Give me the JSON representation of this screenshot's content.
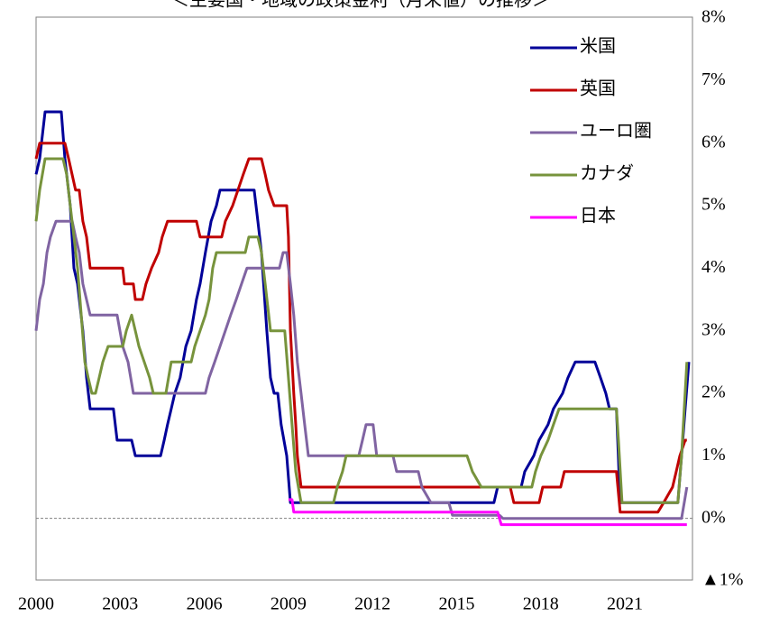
{
  "chart_data": {
    "type": "line",
    "title": "＜主要国・地域の政策金利（月末値）の推移＞",
    "xlim": [
      2000,
      2023.41
    ],
    "xticks": [
      2000,
      2003,
      2006,
      2009,
      2012,
      2015,
      2018,
      2021
    ],
    "ylim": [
      -1,
      8
    ],
    "yticks": [
      {
        "value": -1,
        "label": "▲1%"
      },
      {
        "value": 0,
        "label": "0%"
      },
      {
        "value": 1,
        "label": "1%"
      },
      {
        "value": 2,
        "label": "2%"
      },
      {
        "value": 3,
        "label": "3%"
      },
      {
        "value": 4,
        "label": "4%"
      },
      {
        "value": 5,
        "label": "5%"
      },
      {
        "value": 6,
        "label": "6%"
      },
      {
        "value": 7,
        "label": "7%"
      },
      {
        "value": 8,
        "label": "8%"
      }
    ],
    "y_axis_side": "right",
    "negative_tick_color": "#ff0000",
    "zero_line": true,
    "legend": "upper right",
    "series": [
      {
        "name": "米国",
        "color": "#000099",
        "x": [
          2000,
          2000.13,
          2000.32,
          2000.9,
          2001.03,
          2001.22,
          2001.35,
          2001.48,
          2001.67,
          2001.8,
          2001.93,
          2002.76,
          2002.89,
          2003.41,
          2003.54,
          2004.44,
          2004.57,
          2004.69,
          2004.82,
          2004.95,
          2005.14,
          2005.34,
          2005.53,
          2005.72,
          2005.85,
          2006.04,
          2006.24,
          2006.43,
          2006.56,
          2007.78,
          2007.91,
          2008.04,
          2008.23,
          2008.36,
          2008.49,
          2008.62,
          2008.74,
          2008.94,
          2009.07,
          2016.33,
          2016.46,
          2017.3,
          2017.43,
          2017.75,
          2017.94,
          2018.26,
          2018.45,
          2018.78,
          2018.97,
          2019.23,
          2019.93,
          2020.13,
          2020.32,
          2020.45,
          2020.7,
          2020.83,
          2022.89,
          2023.02,
          2023.15,
          2023.28
        ],
        "values": [
          5.5,
          5.75,
          6.5,
          6.5,
          5.75,
          5.0,
          4.0,
          3.75,
          3.0,
          2.25,
          1.75,
          1.75,
          1.25,
          1.25,
          1.0,
          1.0,
          1.25,
          1.5,
          1.75,
          2.0,
          2.25,
          2.75,
          3.0,
          3.5,
          3.75,
          4.25,
          4.75,
          5.0,
          5.25,
          5.25,
          4.75,
          4.25,
          3.0,
          2.25,
          2.0,
          2.0,
          1.5,
          1.0,
          0.25,
          0.25,
          0.5,
          0.5,
          0.75,
          1.0,
          1.25,
          1.5,
          1.75,
          2.0,
          2.25,
          2.5,
          2.5,
          2.25,
          2.0,
          1.75,
          1.75,
          0.25,
          0.25,
          1.0,
          1.75,
          2.5
        ]
      },
      {
        "name": "英国",
        "color": "#c00000",
        "x": [
          2000,
          2000.13,
          2001.03,
          2001.16,
          2001.41,
          2001.54,
          2001.67,
          2001.8,
          2001.93,
          2003.09,
          2003.15,
          2003.47,
          2003.54,
          2003.79,
          2003.92,
          2004.12,
          2004.37,
          2004.5,
          2004.69,
          2005.72,
          2005.85,
          2006.62,
          2006.75,
          2007.01,
          2007.2,
          2007.39,
          2007.59,
          2008.04,
          2008.17,
          2008.29,
          2008.49,
          2008.94,
          2009.0,
          2009.07,
          2009.19,
          2009.26,
          2009.32,
          2009.45,
          2016.91,
          2017.04,
          2017.94,
          2018.07,
          2018.71,
          2018.84,
          2020.7,
          2020.83,
          2022.18,
          2022.38,
          2022.7,
          2022.83,
          2022.96,
          2023.15,
          2023.21
        ],
        "values": [
          5.75,
          6.0,
          6.0,
          5.75,
          5.25,
          5.25,
          4.75,
          4.5,
          4.0,
          4.0,
          3.75,
          3.75,
          3.5,
          3.5,
          3.75,
          4.0,
          4.25,
          4.5,
          4.75,
          4.75,
          4.5,
          4.5,
          4.75,
          5.0,
          5.25,
          5.5,
          5.75,
          5.75,
          5.5,
          5.25,
          5.0,
          5.0,
          4.5,
          3.0,
          2.0,
          1.5,
          1.0,
          0.5,
          0.5,
          0.25,
          0.25,
          0.5,
          0.5,
          0.75,
          0.75,
          0.1,
          0.1,
          0.25,
          0.5,
          0.75,
          1.0,
          1.25,
          1.25
        ]
      },
      {
        "name": "ユーロ圏",
        "color": "#8064a2",
        "x": [
          2000,
          2000.13,
          2000.26,
          2000.39,
          2000.51,
          2000.71,
          2001.29,
          2001.41,
          2001.54,
          2001.67,
          2001.93,
          2002.89,
          2003.09,
          2003.28,
          2003.47,
          2006.04,
          2006.17,
          2006.37,
          2006.56,
          2006.75,
          2006.94,
          2007.14,
          2007.33,
          2007.52,
          2008.68,
          2008.81,
          2008.94,
          2009.07,
          2009.19,
          2009.32,
          2009.45,
          2009.58,
          2009.71,
          2011.51,
          2011.64,
          2011.77,
          2012.02,
          2012.15,
          2012.73,
          2012.86,
          2013.63,
          2013.76,
          2014.08,
          2014.72,
          2014.85,
          2016.53,
          2016.65,
          2023.02,
          2023.21
        ],
        "values": [
          3.0,
          3.5,
          3.75,
          4.25,
          4.5,
          4.75,
          4.75,
          4.5,
          4.25,
          3.75,
          3.25,
          3.25,
          2.75,
          2.5,
          2.0,
          2.0,
          2.25,
          2.5,
          2.75,
          3.0,
          3.25,
          3.5,
          3.75,
          4.0,
          4.0,
          4.25,
          4.25,
          3.75,
          3.25,
          2.5,
          2.0,
          1.5,
          1.0,
          1.0,
          1.25,
          1.5,
          1.5,
          1.0,
          1.0,
          0.75,
          0.75,
          0.5,
          0.25,
          0.25,
          0.05,
          0.05,
          0.0,
          0.0,
          0.5
        ]
      },
      {
        "name": "カナダ",
        "color": "#77933c",
        "x": [
          2000,
          2000.13,
          2000.32,
          2000.96,
          2001.09,
          2001.22,
          2001.35,
          2001.48,
          2001.61,
          2001.74,
          2001.86,
          2001.99,
          2002.12,
          2002.25,
          2002.38,
          2002.57,
          2003.09,
          2003.22,
          2003.41,
          2003.54,
          2003.67,
          2003.86,
          2004.05,
          2004.18,
          2004.63,
          2004.82,
          2005.53,
          2005.66,
          2005.85,
          2006.04,
          2006.17,
          2006.3,
          2006.43,
          2007.46,
          2007.59,
          2007.91,
          2008.04,
          2008.17,
          2008.36,
          2008.87,
          2009.0,
          2009.13,
          2009.26,
          2009.45,
          2010.61,
          2010.74,
          2010.93,
          2011.06,
          2015.37,
          2015.56,
          2015.88,
          2017.68,
          2017.81,
          2018.0,
          2018.26,
          2018.45,
          2018.65,
          2020.7,
          2020.77,
          2020.9,
          2022.89,
          2023.02,
          2023.21
        ],
        "values": [
          4.75,
          5.25,
          5.75,
          5.75,
          5.5,
          5.0,
          4.5,
          4.0,
          3.25,
          2.5,
          2.25,
          2.0,
          2.0,
          2.25,
          2.5,
          2.75,
          2.75,
          3.0,
          3.25,
          3.0,
          2.75,
          2.5,
          2.25,
          2.0,
          2.0,
          2.5,
          2.5,
          2.75,
          3.0,
          3.25,
          3.5,
          4.0,
          4.25,
          4.25,
          4.5,
          4.5,
          4.25,
          3.75,
          3.0,
          3.0,
          2.25,
          1.5,
          0.75,
          0.25,
          0.25,
          0.5,
          0.75,
          1.0,
          1.0,
          0.75,
          0.5,
          0.5,
          0.75,
          1.0,
          1.25,
          1.5,
          1.75,
          1.75,
          1.25,
          0.25,
          0.25,
          1.0,
          2.5
        ]
      },
      {
        "name": "日本",
        "color": "#ff00ff",
        "x": [
          2009.0,
          2009.13,
          2009.19,
          2016.46,
          2016.59,
          2023.21
        ],
        "values": [
          0.3,
          0.3,
          0.1,
          0.1,
          -0.1,
          -0.1
        ]
      }
    ]
  }
}
